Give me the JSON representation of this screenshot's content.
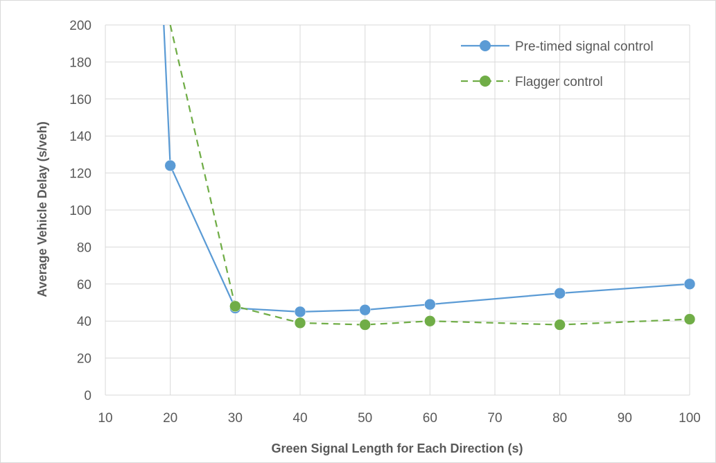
{
  "chart_data": {
    "type": "line",
    "title": "",
    "xlabel": "Green Signal Length for Each Direction (s)",
    "ylabel": "Average Vehicle Delay (s/veh)",
    "xlim": [
      10,
      100
    ],
    "ylim": [
      0,
      200
    ],
    "x_ticks": [
      10,
      20,
      30,
      40,
      50,
      60,
      70,
      80,
      90,
      100
    ],
    "y_ticks": [
      0,
      20,
      40,
      60,
      80,
      100,
      120,
      140,
      160,
      180,
      200
    ],
    "grid": true,
    "legend_position": "top-right",
    "series": [
      {
        "name": "Pre-timed signal control",
        "color": "#5b9bd5",
        "line_style": "solid",
        "marker": "circle",
        "x": [
          19,
          20,
          30,
          40,
          50,
          60,
          80,
          100
        ],
        "y": [
          200,
          124,
          47,
          45,
          46,
          49,
          55,
          60
        ]
      },
      {
        "name": "Flagger control",
        "color": "#70ad47",
        "line_style": "dashed",
        "marker": "circle",
        "x": [
          20,
          30,
          40,
          50,
          60,
          80,
          100
        ],
        "y": [
          200,
          48,
          39,
          38,
          40,
          38,
          41
        ]
      }
    ]
  }
}
